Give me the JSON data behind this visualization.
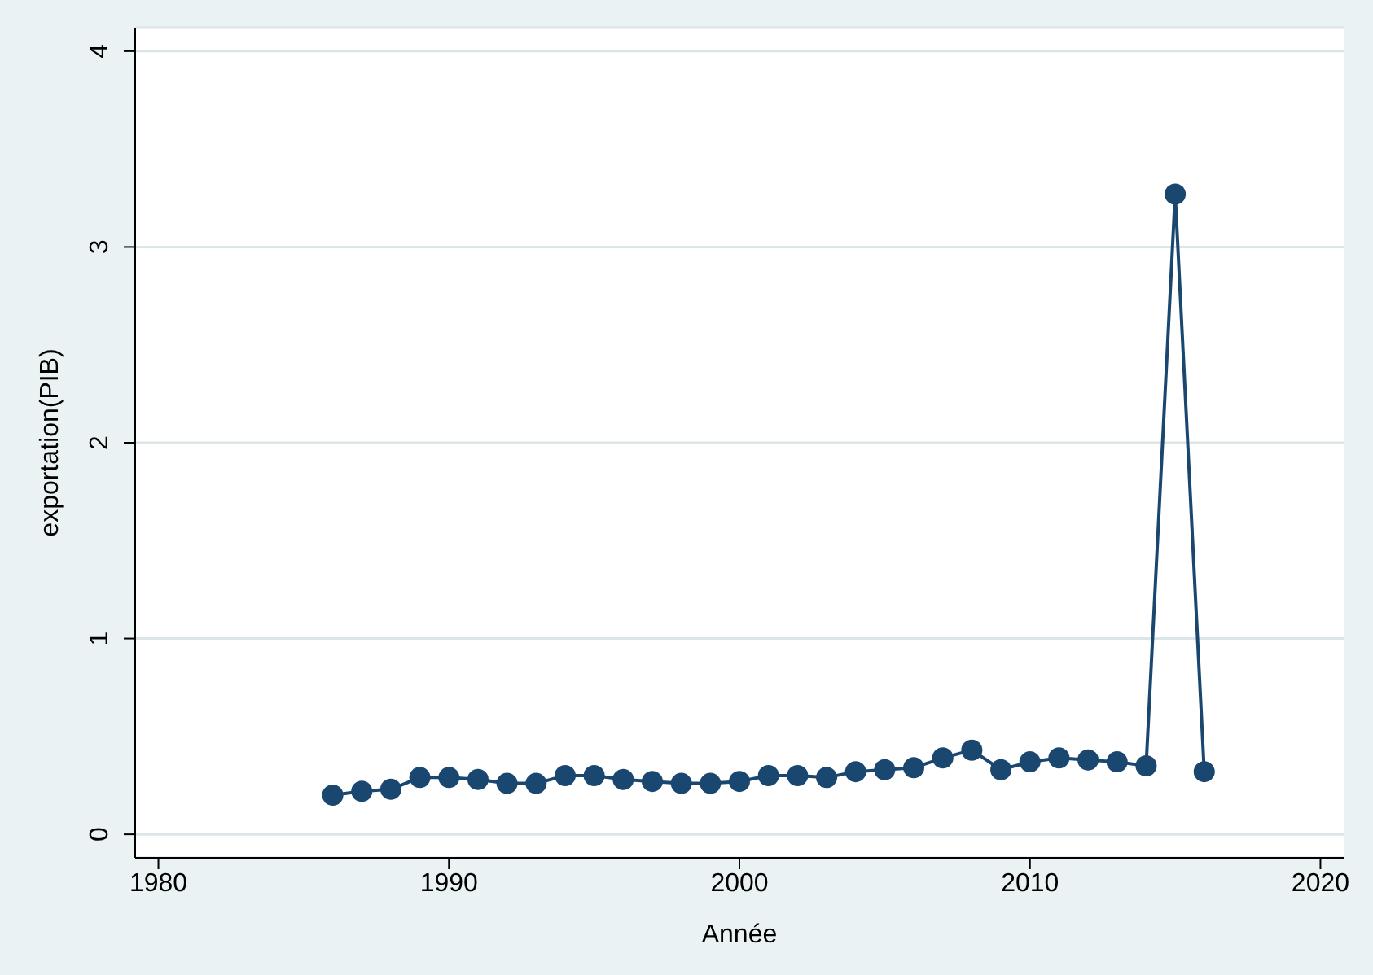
{
  "chart_data": {
    "type": "line",
    "xlabel": "Année",
    "ylabel": "exportation(PIB)",
    "x": [
      1986,
      1987,
      1988,
      1989,
      1990,
      1991,
      1992,
      1993,
      1994,
      1995,
      1996,
      1997,
      1998,
      1999,
      2000,
      2001,
      2002,
      2003,
      2004,
      2005,
      2006,
      2007,
      2008,
      2009,
      2010,
      2011,
      2012,
      2013,
      2014,
      2015,
      2016
    ],
    "series": [
      {
        "color": "#1a476f",
        "values": [
          0.2,
          0.22,
          0.23,
          0.29,
          0.29,
          0.28,
          0.26,
          0.26,
          0.3,
          0.3,
          0.28,
          0.27,
          0.26,
          0.26,
          0.27,
          0.3,
          0.3,
          0.29,
          0.32,
          0.33,
          0.34,
          0.39,
          0.43,
          0.33,
          0.37,
          0.39,
          0.38,
          0.37,
          0.35,
          3.27,
          0.32
        ]
      }
    ],
    "xlim": [
      1979.2,
      2020.8
    ],
    "xticks": [
      1980,
      1990,
      2000,
      2010,
      2020
    ],
    "ylim": [
      -0.12,
      4.12
    ],
    "yticks": [
      0,
      1,
      2,
      3,
      4
    ],
    "grid": "y",
    "marker": "circle",
    "line_style": "solid",
    "legend": false
  }
}
